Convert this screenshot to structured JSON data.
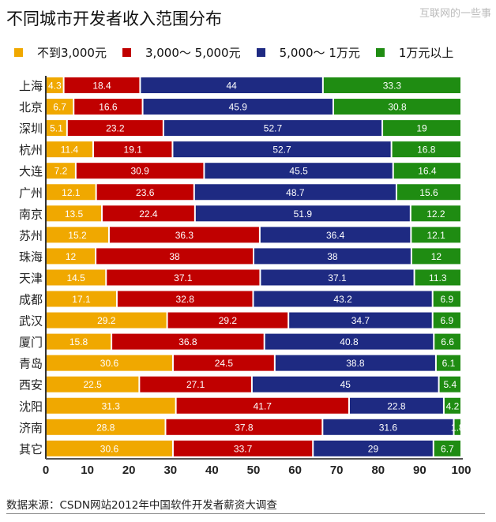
{
  "watermark": "互联网的一些事",
  "chart_data": {
    "type": "bar",
    "orientation": "horizontal",
    "stacked": true,
    "title": "不同城市开发者收入范围分布",
    "source": "数据来源：CSDN网站2012年中国软件开发者薪资大调查",
    "xlim": [
      0,
      100
    ],
    "xticks": [
      "0",
      "10",
      "20",
      "30",
      "40",
      "50",
      "60",
      "70",
      "80",
      "90",
      "100"
    ],
    "legend_position": "top",
    "grid": false,
    "categories": [
      "上海",
      "北京",
      "深圳",
      "杭州",
      "大连",
      "广州",
      "南京",
      "苏州",
      "珠海",
      "天津",
      "成都",
      "武汉",
      "厦门",
      "青岛",
      "西安",
      "沈阳",
      "济南",
      "其它"
    ],
    "series": [
      {
        "name": "不到3,000元",
        "color": "#F0A800",
        "values": [
          4.3,
          6.7,
          5.1,
          11.4,
          7.2,
          12.1,
          13.5,
          15.2,
          12,
          14.5,
          17.1,
          29.2,
          15.8,
          30.6,
          22.5,
          31.3,
          28.8,
          30.6
        ]
      },
      {
        "name": "3,000～ 5,000元",
        "color": "#C00000",
        "values": [
          18.4,
          16.6,
          23.2,
          19.1,
          30.9,
          23.6,
          22.4,
          36.3,
          38,
          37.1,
          32.8,
          29.2,
          36.8,
          24.5,
          27.1,
          41.7,
          37.8,
          33.7
        ]
      },
      {
        "name": "5,000～ 1万元",
        "color": "#1E2A82",
        "values": [
          44,
          45.9,
          52.7,
          52.7,
          45.5,
          48.7,
          51.9,
          36.4,
          38,
          37.1,
          43.2,
          34.7,
          40.8,
          38.8,
          45,
          22.8,
          31.6,
          29
        ]
      },
      {
        "name": "1万元以上",
        "color": "#1F8C12",
        "values": [
          33.3,
          30.8,
          19,
          16.8,
          16.4,
          15.6,
          12.2,
          12.1,
          12,
          11.3,
          6.9,
          6.9,
          6.6,
          6.1,
          5.4,
          4.2,
          1.8,
          6.7
        ]
      }
    ]
  }
}
